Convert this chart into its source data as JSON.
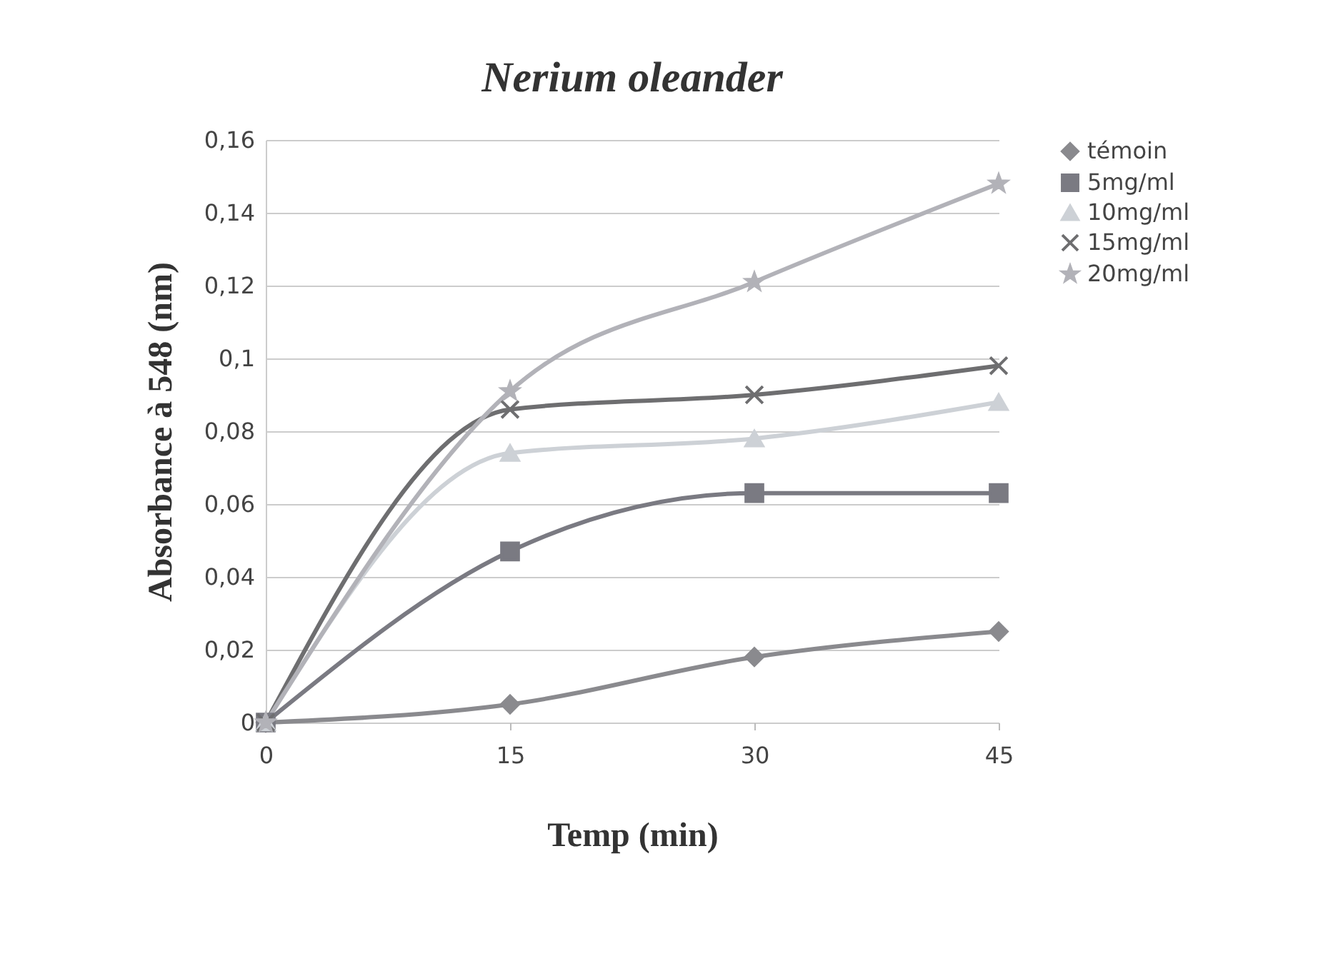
{
  "chart_data": {
    "type": "line",
    "title": "Nerium oleander",
    "xlabel": "Temp (min)",
    "ylabel": "Absorbance à 548 (nm)",
    "x": [
      0,
      15,
      30,
      45
    ],
    "xlim": [
      0,
      45
    ],
    "xticks": [
      0,
      15,
      30,
      45
    ],
    "ylim": [
      0,
      0.16
    ],
    "yticks": [
      0,
      {
        "value": 0.02,
        "label": "0,02"
      },
      {
        "value": 0.04,
        "label": "0,04"
      },
      {
        "value": 0.06,
        "label": "0,06"
      },
      {
        "value": 0.08,
        "label": "0,08"
      },
      {
        "value": 0.1,
        "label": "0,1"
      },
      {
        "value": 0.12,
        "label": "0,12"
      },
      {
        "value": 0.14,
        "label": "0,14"
      },
      {
        "value": 0.16,
        "label": "0,16"
      }
    ],
    "grid": "y",
    "legend": "right",
    "series": [
      {
        "name": "témoin",
        "color": "#8a8a8e",
        "marker": "diamond",
        "values": [
          0,
          0.005,
          0.018,
          0.025
        ]
      },
      {
        "name": "5mg/ml",
        "color": "#7a7a82",
        "marker": "square",
        "values": [
          0,
          0.047,
          0.063,
          0.063
        ]
      },
      {
        "name": "10mg/ml",
        "color": "#cdd1d6",
        "marker": "triangle",
        "values": [
          0,
          0.074,
          0.078,
          0.088
        ]
      },
      {
        "name": "15mg/ml",
        "color": "#6e6e70",
        "marker": "cross",
        "values": [
          0,
          0.086,
          0.09,
          0.098
        ]
      },
      {
        "name": "20mg/ml",
        "color": "#b2b2b8",
        "marker": "star",
        "values": [
          0,
          0.091,
          0.121,
          0.148
        ]
      }
    ]
  }
}
